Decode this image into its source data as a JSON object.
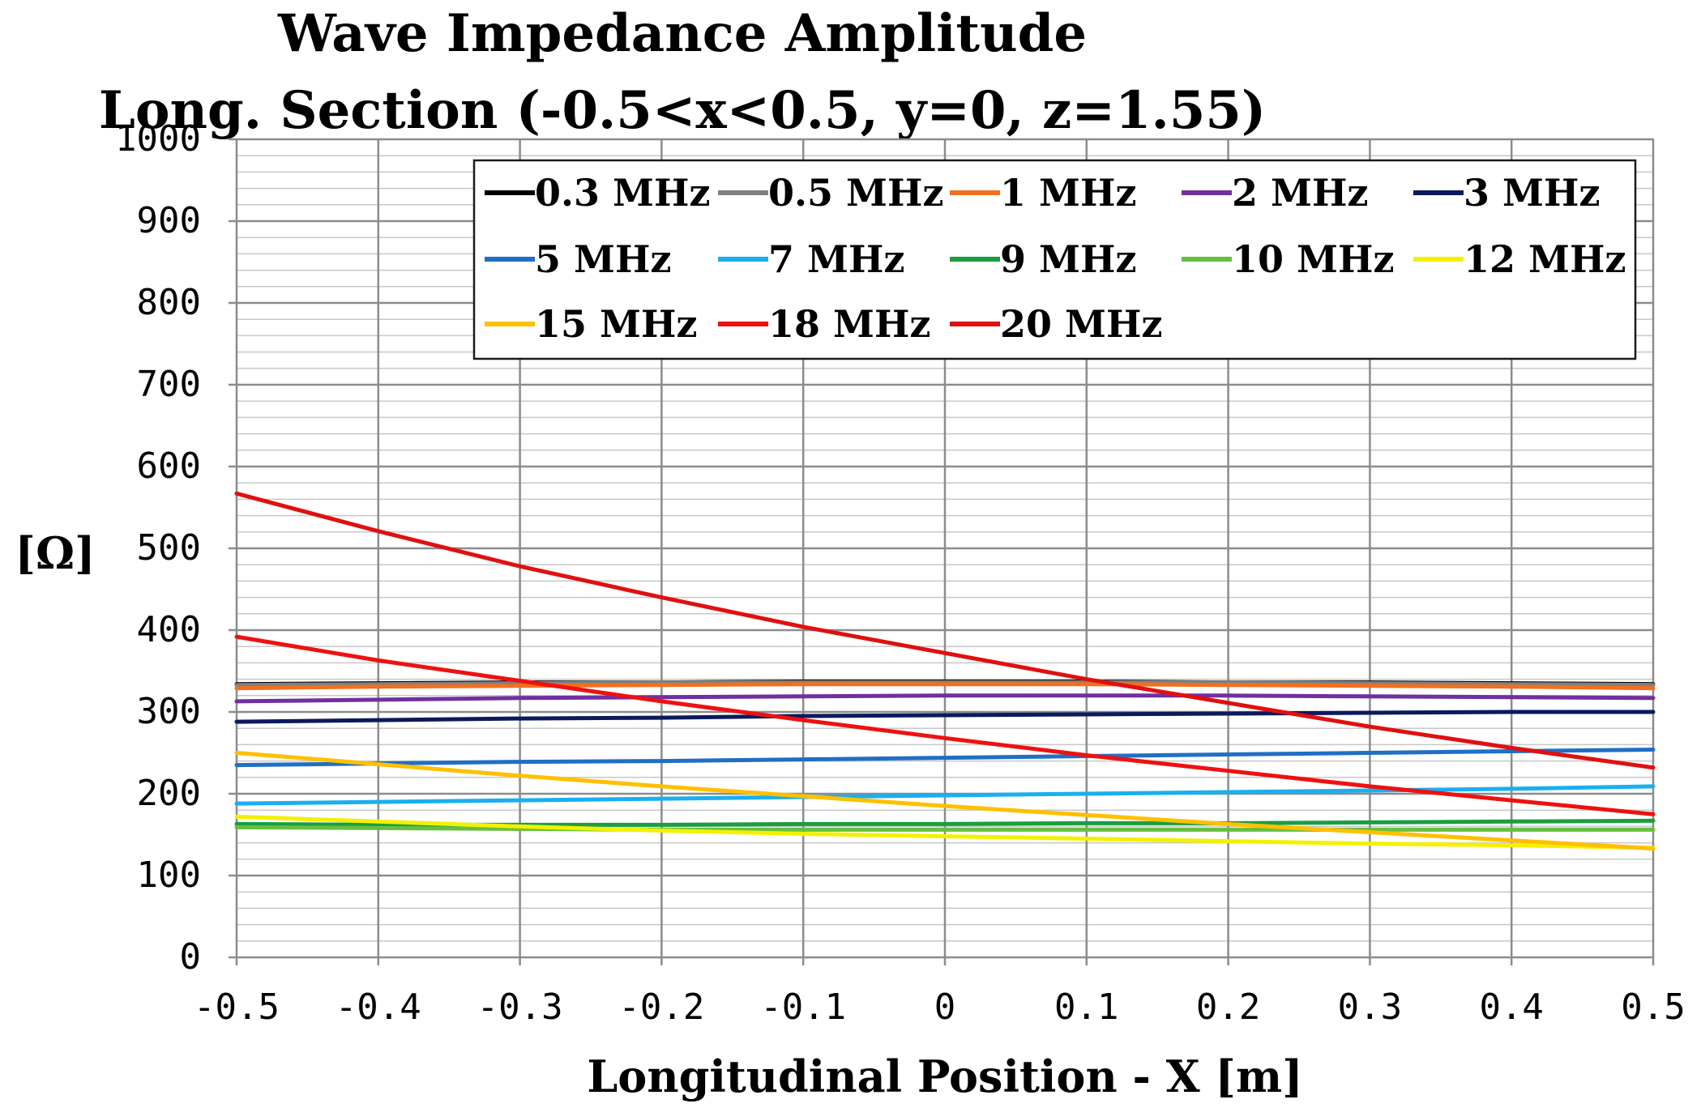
{
  "chart_data": {
    "type": "line",
    "title": [
      "Wave Impedance Amplitude",
      "Long. Section (-0.5<x<0.5, y=0, z=1.55)"
    ],
    "xlabel": "Longitudinal Position - X [m]",
    "ylabel": "[Ω]",
    "xlim": [
      -0.5,
      0.5
    ],
    "ylim": [
      0,
      1000
    ],
    "xticks": [
      -0.5,
      -0.4,
      -0.3,
      -0.2,
      -0.1,
      0,
      0.1,
      0.2,
      0.3,
      0.4,
      0.5
    ],
    "xtick_labels": [
      "-0.5",
      "-0.4",
      "-0.3",
      "-0.2",
      "-0.1",
      "0",
      "0.1",
      "0.2",
      "0.3",
      "0.4",
      "0.5"
    ],
    "yticks": [
      0,
      100,
      200,
      300,
      400,
      500,
      600,
      700,
      800,
      900,
      1000
    ],
    "ytick_labels": [
      "0",
      "100",
      "200",
      "300",
      "400",
      "500",
      "600",
      "700",
      "800",
      "900",
      "1000"
    ],
    "grid": true,
    "legend_position": "top-right",
    "x": [
      -0.5,
      -0.4,
      -0.3,
      -0.2,
      -0.1,
      0,
      0.1,
      0.2,
      0.3,
      0.4,
      0.5
    ],
    "series": [
      {
        "name": "0.3 MHz",
        "color": "#000000",
        "values": [
          334,
          335,
          336,
          336,
          337,
          337,
          337,
          336,
          336,
          335,
          334
        ]
      },
      {
        "name": "0.5 MHz",
        "color": "#808080",
        "values": [
          333,
          334,
          335,
          336,
          336,
          336,
          336,
          336,
          335,
          334,
          333
        ]
      },
      {
        "name": "1 MHz",
        "color": "#F07020",
        "values": [
          329,
          331,
          332,
          333,
          334,
          334,
          334,
          333,
          332,
          331,
          329
        ]
      },
      {
        "name": "2 MHz",
        "color": "#7030A0",
        "values": [
          313,
          315,
          317,
          318,
          319,
          320,
          320,
          320,
          319,
          318,
          317
        ]
      },
      {
        "name": "3 MHz",
        "color": "#0A1A5C",
        "values": [
          288,
          290,
          292,
          293,
          295,
          296,
          297,
          298,
          299,
          300,
          300
        ]
      },
      {
        "name": "5 MHz",
        "color": "#1F6FC5",
        "values": [
          235,
          237,
          239,
          240,
          242,
          244,
          246,
          248,
          250,
          252,
          254
        ]
      },
      {
        "name": "7 MHz",
        "color": "#1AAFEF",
        "values": [
          188,
          190,
          192,
          194,
          196,
          198,
          200,
          202,
          204,
          206,
          209
        ]
      },
      {
        "name": "9 MHz",
        "color": "#1A9E40",
        "values": [
          163,
          162,
          162,
          162,
          163,
          163,
          164,
          164,
          165,
          166,
          167
        ]
      },
      {
        "name": "10 MHz",
        "color": "#66C040",
        "values": [
          159,
          158,
          157,
          156,
          156,
          156,
          156,
          156,
          156,
          156,
          156
        ]
      },
      {
        "name": "12 MHz",
        "color": "#F5F000",
        "values": [
          172,
          166,
          160,
          155,
          151,
          148,
          145,
          142,
          139,
          137,
          134
        ]
      },
      {
        "name": "15 MHz",
        "color": "#FFC000",
        "values": [
          250,
          236,
          222,
          209,
          197,
          185,
          174,
          163,
          153,
          143,
          133
        ]
      },
      {
        "name": "18 MHz",
        "color": "#EE1111",
        "values": [
          392,
          363,
          338,
          313,
          290,
          268,
          247,
          228,
          209,
          192,
          175
        ]
      },
      {
        "name": "20 MHz",
        "color": "#E01010",
        "values": [
          567,
          521,
          478,
          440,
          404,
          372,
          340,
          311,
          282,
          256,
          232
        ]
      }
    ]
  }
}
